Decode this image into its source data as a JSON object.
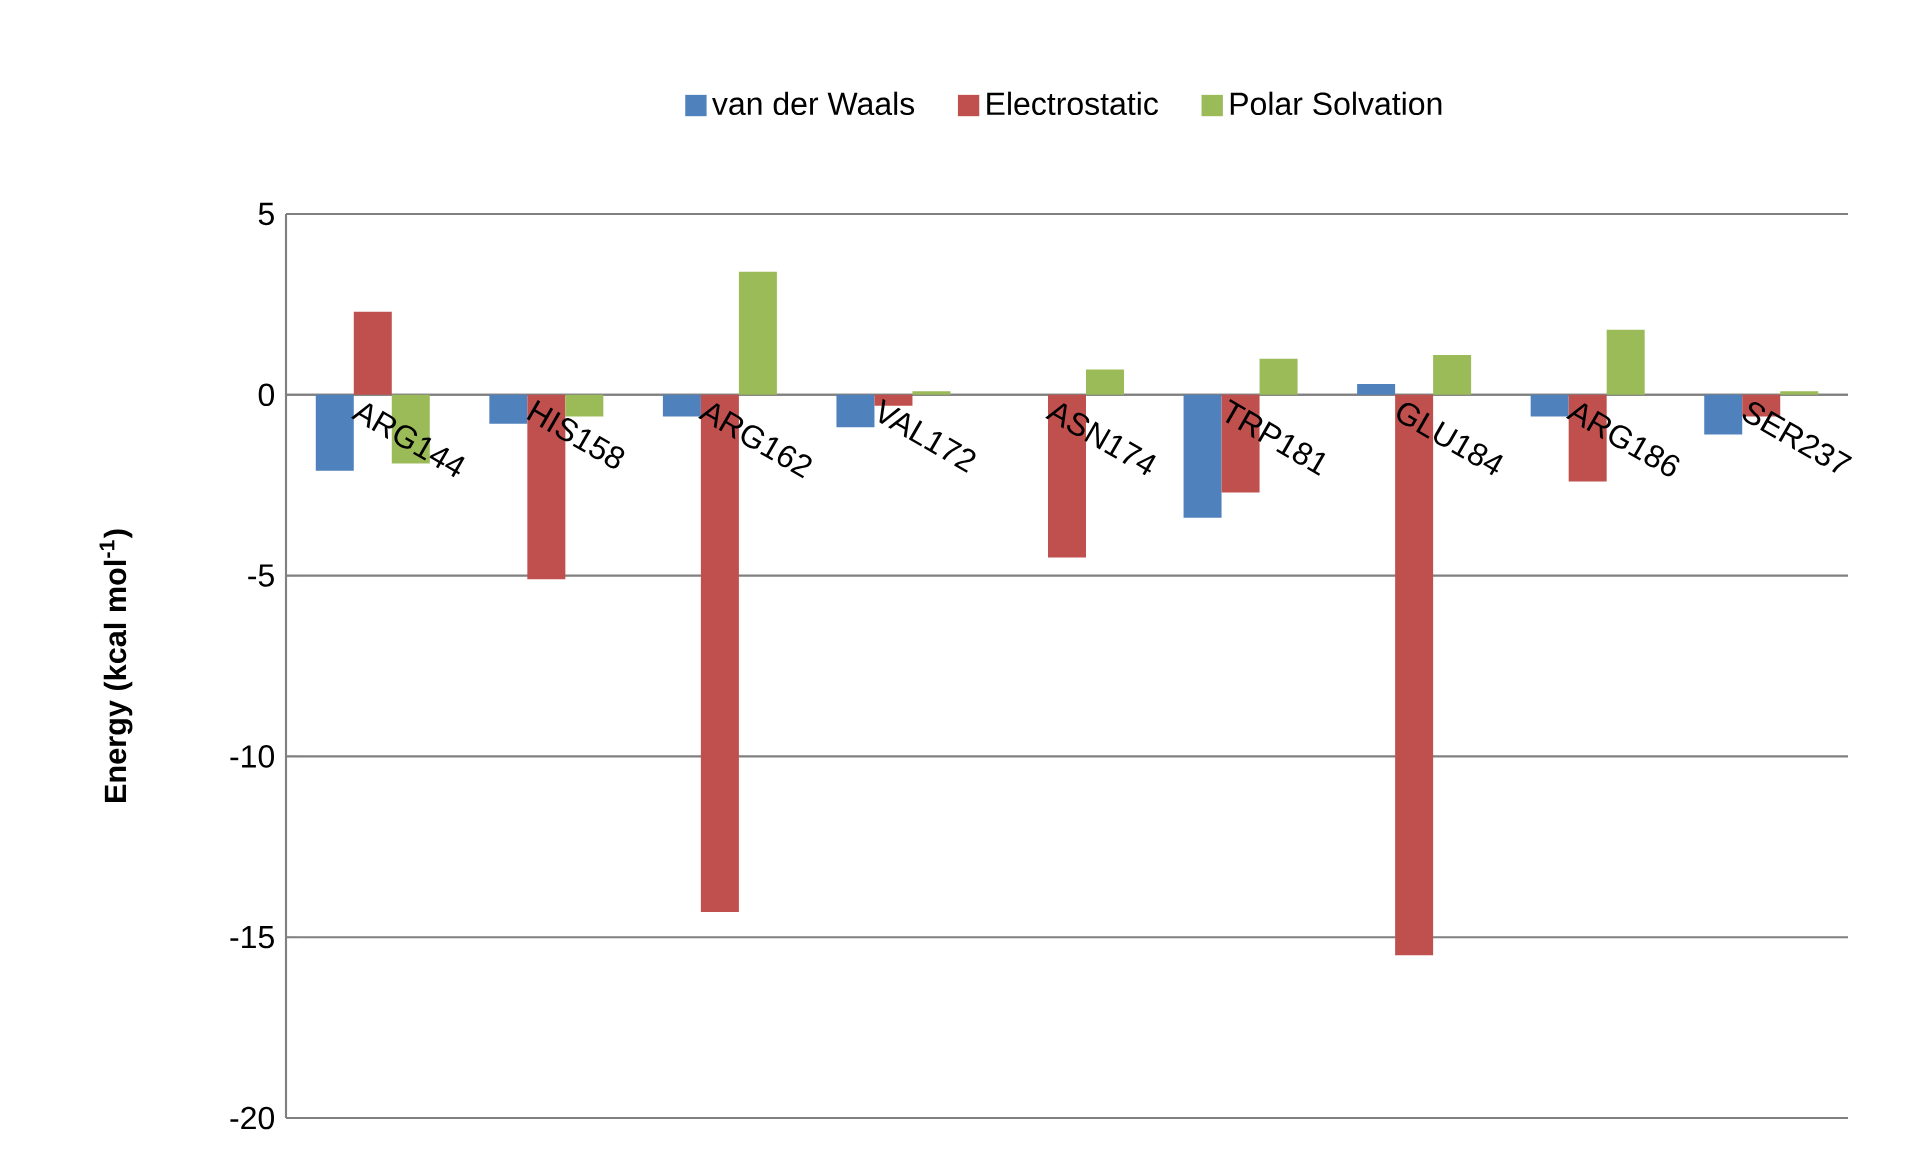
{
  "chart_data": {
    "type": "bar",
    "ylabel": "**Energy (kcal mol$^{-1}$)**",
    "categories": [
      "ARG144",
      "HIS158",
      "ARG162",
      "VAL172",
      "ASN174",
      "TRP181",
      "GLU184",
      "ARG186",
      "SER237"
    ],
    "series": [
      {
        "name": "van der Waals",
        "color": "#4f81bd",
        "values": [
          -2.1,
          -0.8,
          -0.6,
          -0.9,
          0,
          -3.4,
          0.3,
          -0.6,
          -1.1
        ]
      },
      {
        "name": "Electrostatic",
        "color": "#c0504d",
        "values": [
          2.3,
          -5.1,
          -14.3,
          -0.3,
          -4.5,
          -2.7,
          -15.5,
          -2.4,
          -0.6
        ]
      },
      {
        "name": "Polar Solvation",
        "color": "#9bbb59",
        "values": [
          -1.9,
          -0.6,
          3.4,
          0.1,
          0.7,
          1.0,
          1.1,
          1.8,
          0.1
        ]
      }
    ],
    "ylim": [
      -20,
      5
    ],
    "yticks": [
      -20,
      -15,
      -10,
      -5,
      0,
      5
    ],
    "grid": "y",
    "legend": "top"
  }
}
